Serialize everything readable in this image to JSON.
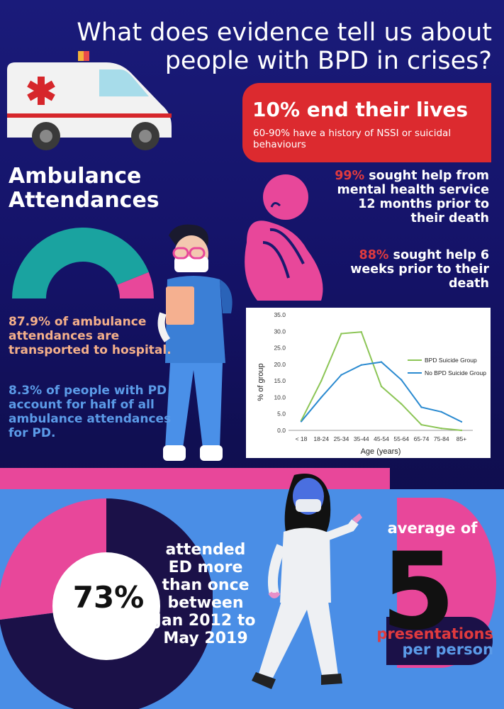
{
  "title": {
    "line1": "What does evidence tell us about",
    "line2": "people with BPD in crises?"
  },
  "red_box": {
    "headline": "10% end their lives",
    "subtext": "60-90% have a history of NSSI or suicidal behaviours"
  },
  "ambulance": {
    "title_line1": "Ambulance",
    "title_line2": "Attendances",
    "donut_fraction_transported": 0.879,
    "stat_transported": "87.9% of ambulance attendances are transported to hospital.",
    "stat_pd": "8.3% of people with PD account for half of all ambulance attendances for PD."
  },
  "help_stats": {
    "s1_value": "99%",
    "s1_text": "sought help from mental health service 12 months prior to their death",
    "s2_value": "88%",
    "s2_text": "sought help 6 weeks prior to their death"
  },
  "ed": {
    "percent": "73%",
    "donut_fraction": 0.73,
    "text_line1": "attended",
    "text_line2": "ED more",
    "text_line3": "than once",
    "text_line4": "between",
    "text_line5": "Jan 2012 to",
    "text_line6": "May 2019",
    "average_label": "average of",
    "average_value": "5",
    "presentations": "presentations",
    "per_person": "per person"
  },
  "colors": {
    "accent_red": "#dc2a2f",
    "teal": "#1aa3a0",
    "pink": "#e8479a",
    "blue": "#4a8ee6",
    "orange_text": "#f5b08a",
    "series_bpd": "#8cc556",
    "series_no_bpd": "#2a8ad0"
  },
  "icons": [
    "ambulance-icon",
    "nurse-illustration",
    "grieving-person-icon",
    "walking-woman-illustration"
  ],
  "chart_data": {
    "type": "line",
    "categories": [
      "< 18",
      "18-24",
      "25-34",
      "35-44",
      "45-54",
      "55-64",
      "65-74",
      "75-84",
      "85+"
    ],
    "series": [
      {
        "name": "BPD Suicide Group",
        "values": [
          3.0,
          15.0,
          29.3,
          29.8,
          13.3,
          8.0,
          1.7,
          0.6,
          0.0
        ]
      },
      {
        "name": "No BPD Suicide Group",
        "values": [
          2.7,
          10.0,
          16.8,
          19.8,
          20.7,
          15.3,
          7.0,
          5.6,
          2.6
        ]
      }
    ],
    "yticks": [
      "35.0",
      "30.0",
      "25.0",
      "20.0",
      "15.0",
      "10.0",
      "5.0",
      "0.0"
    ],
    "ylim": [
      0,
      35
    ],
    "xlabel": "Age (years)",
    "ylabel": "% of group",
    "legend": "right",
    "grid": false
  }
}
